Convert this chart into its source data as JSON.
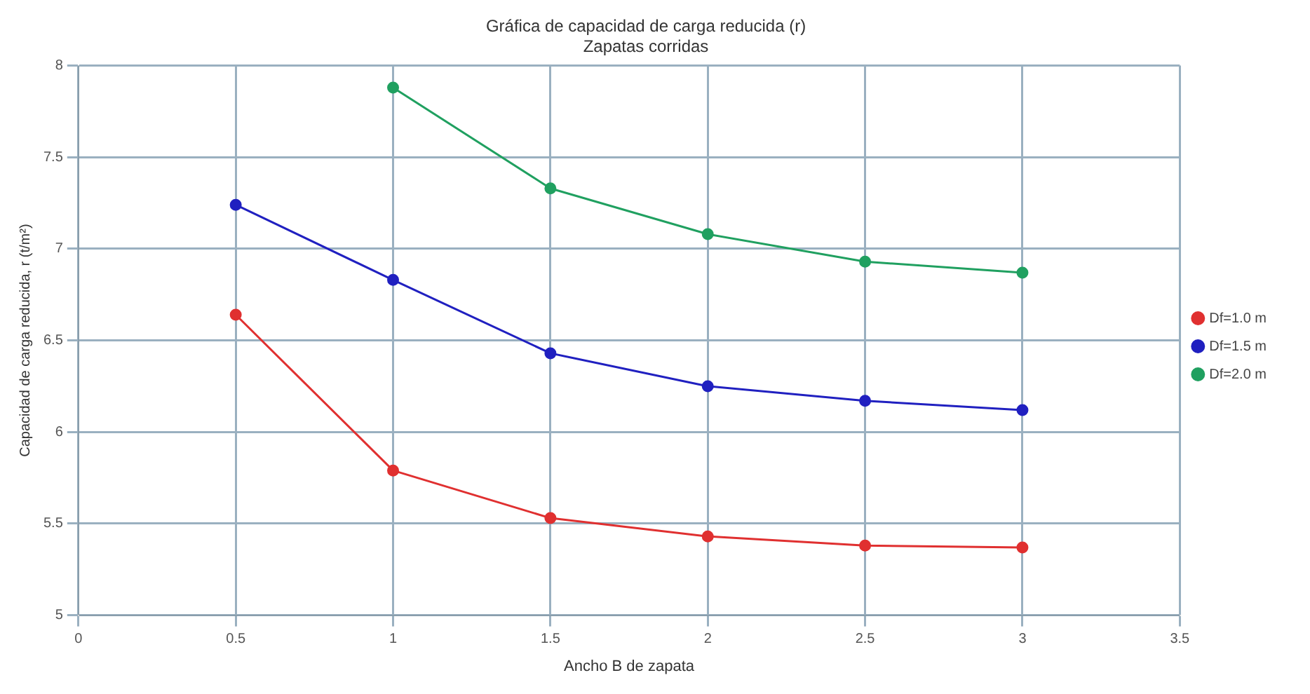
{
  "chart_data": {
    "type": "line",
    "title": "Gráfica de capacidad de carga reducida (r)",
    "subtitle": "Zapatas corridas",
    "xlabel": "Ancho B de zapata",
    "ylabel": "Capacidad de carga reducida, r (t/m²)",
    "x": [
      0.5,
      1,
      1.5,
      2,
      2.5,
      3
    ],
    "series": [
      {
        "name": "Df=1.0 m",
        "color": "#e03030",
        "values": [
          6.64,
          5.79,
          5.53,
          5.43,
          5.38,
          5.37
        ]
      },
      {
        "name": "Df=1.5 m",
        "color": "#2020c0",
        "values": [
          7.24,
          6.83,
          6.43,
          6.25,
          6.17,
          6.12
        ]
      },
      {
        "name": "Df=2.0 m",
        "color": "#20a060",
        "values": [
          null,
          7.88,
          7.33,
          7.08,
          6.93,
          6.87
        ]
      }
    ],
    "xlim": [
      0,
      3.5
    ],
    "xticks": [
      0,
      0.5,
      1,
      1.5,
      2,
      2.5,
      3,
      3.5
    ],
    "ylim": [
      5,
      8
    ],
    "yticks": [
      5,
      5.5,
      6,
      6.5,
      7,
      7.5,
      8
    ],
    "grid": true,
    "legend": "right",
    "marker": "circle",
    "line_style": "solid"
  }
}
